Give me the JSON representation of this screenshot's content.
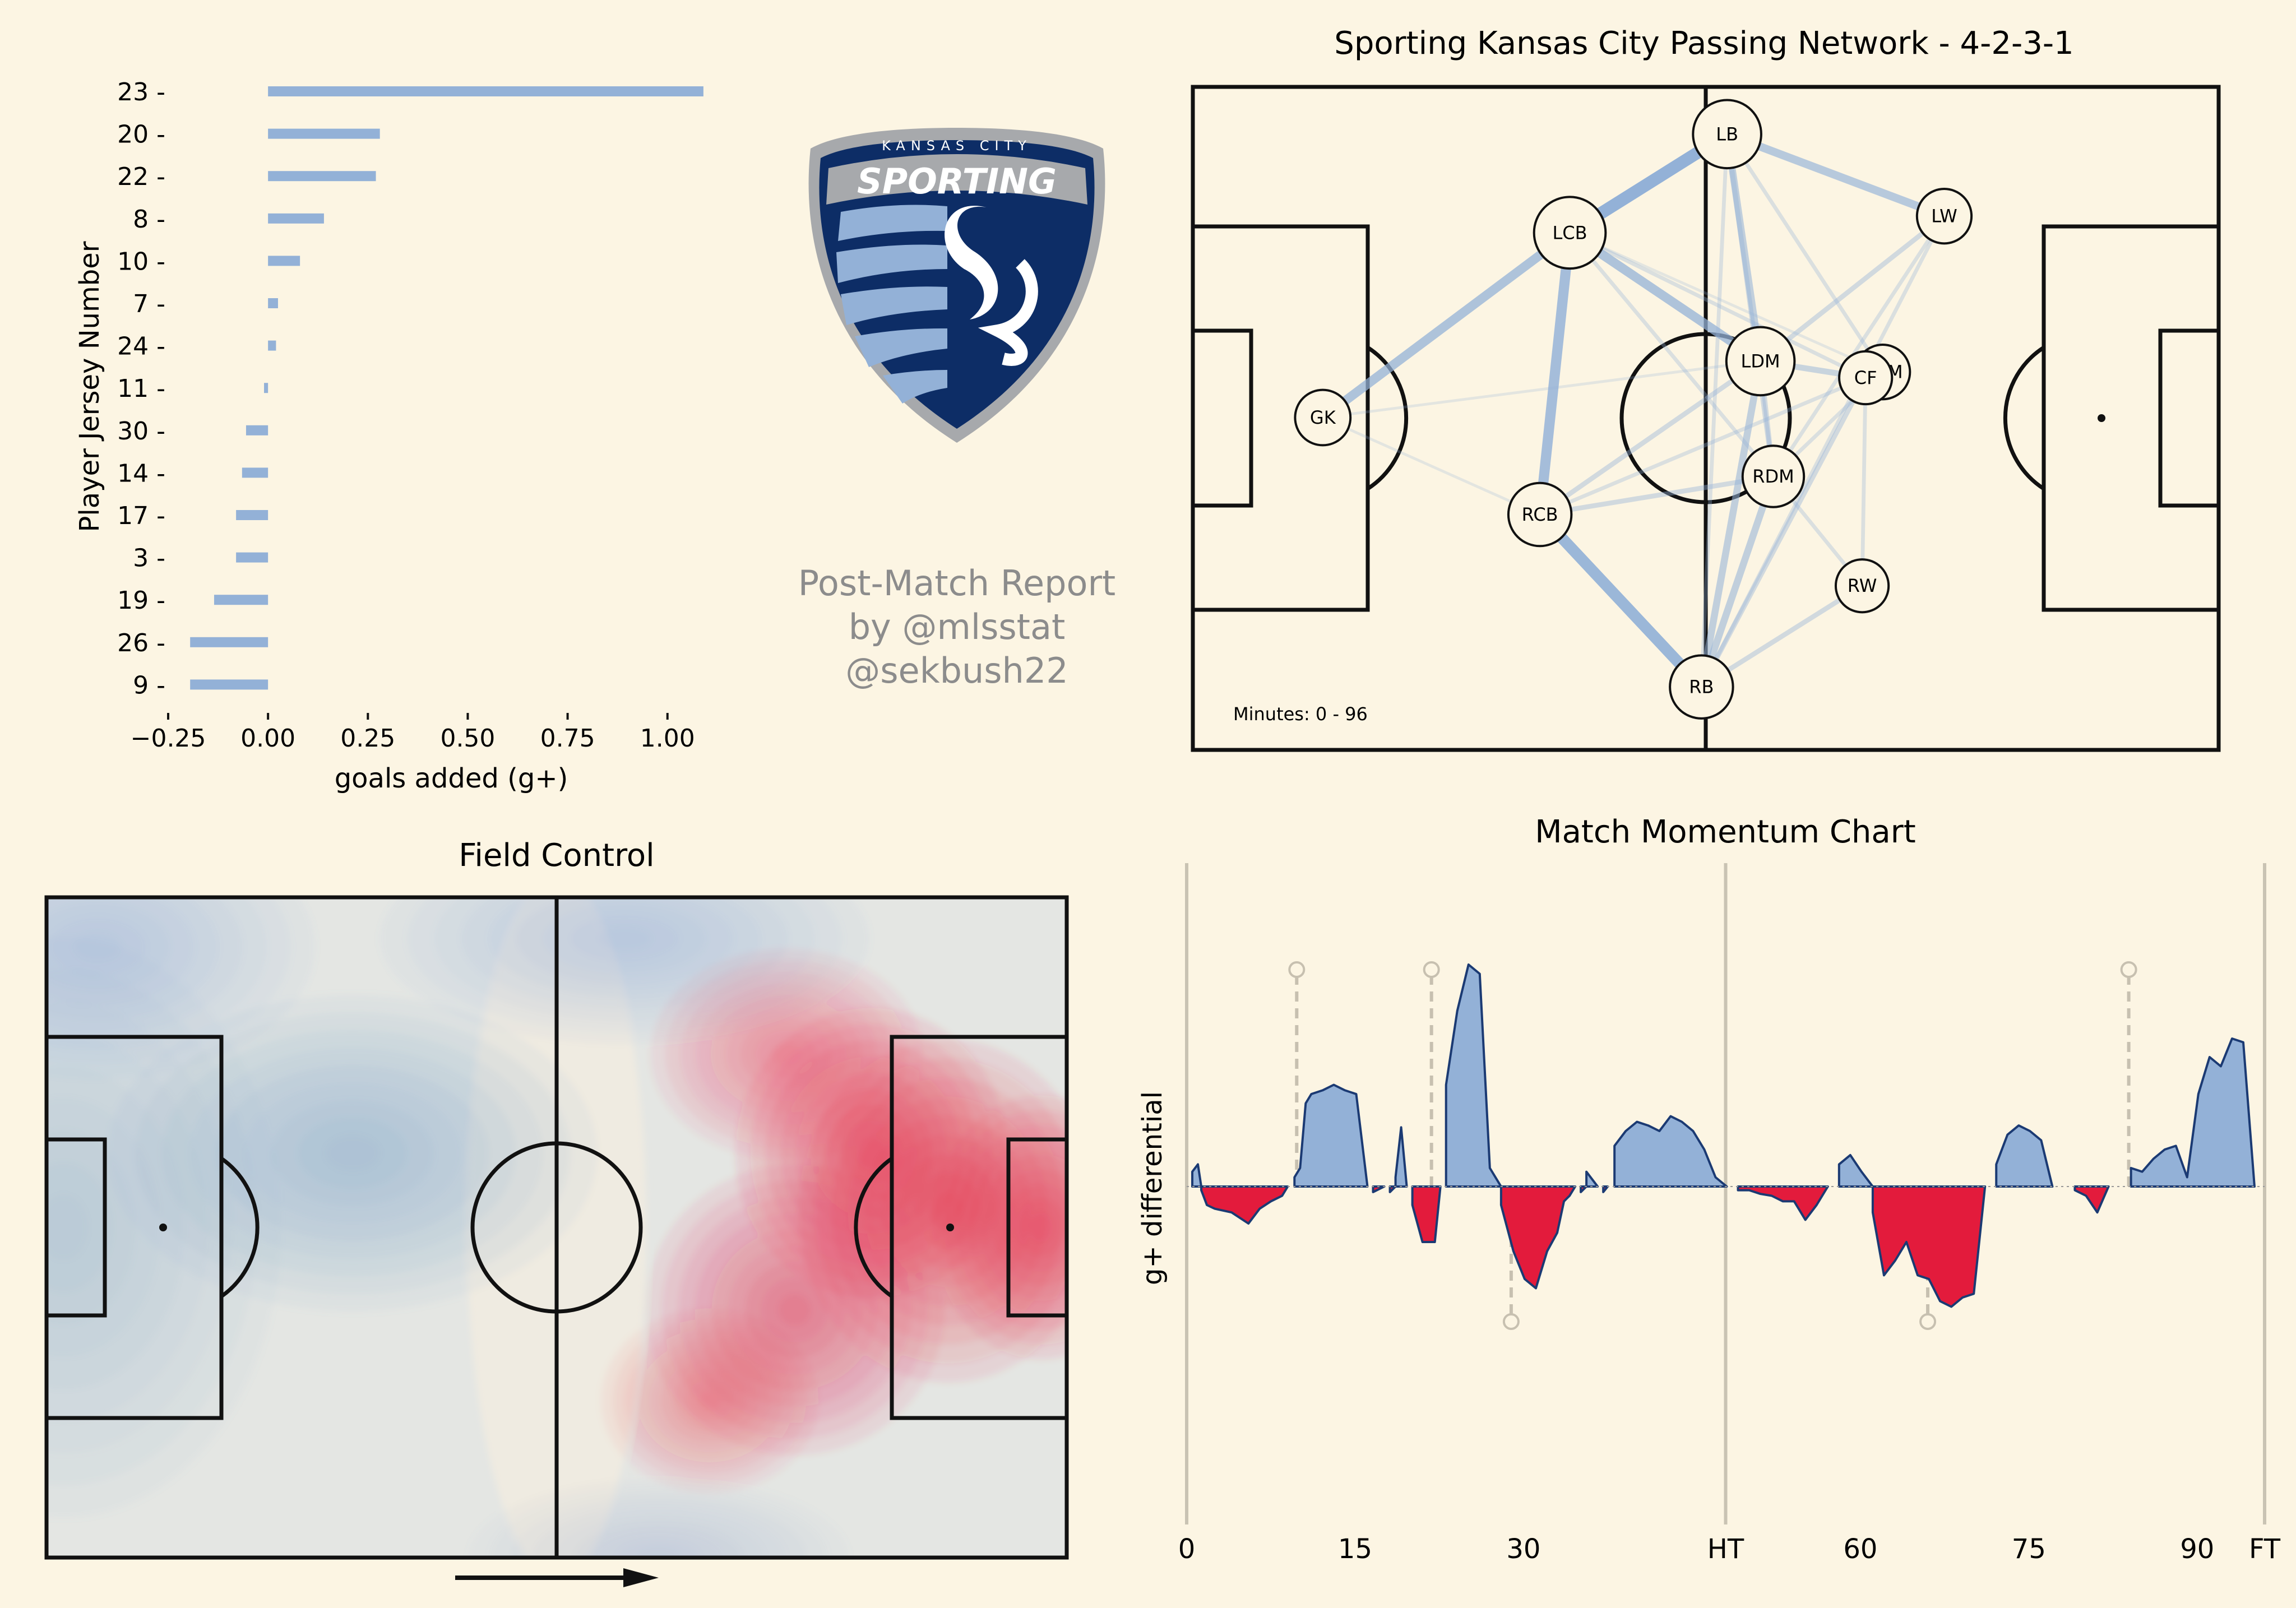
{
  "report": {
    "credit_lines": [
      "Post-Match Report",
      "by @mlsstat",
      "@sekbush22"
    ],
    "logo": {
      "arc_text": "KANSAS CITY",
      "wordmark": "SPORTING",
      "icon": "sporting-kc-crest-icon",
      "colors": {
        "navy": "#0d2d66",
        "light_blue": "#93b1d7",
        "silver": "#a7a9ac"
      }
    }
  },
  "colors": {
    "background": "#fcf5e3",
    "team_blue": "#93b1d7",
    "opponent_red": "#e31b3c",
    "outline_navy": "#1b3a73"
  },
  "chart_data": [
    {
      "id": "goals-added-bar",
      "type": "bar",
      "orientation": "horizontal",
      "title": "",
      "xlabel": "goals added (g+)",
      "ylabel": "Player Jersey Number",
      "xlim": [
        -0.25,
        1.1
      ],
      "xticks": [
        -0.25,
        0.0,
        0.25,
        0.5,
        0.75,
        1.0
      ],
      "xtick_labels": [
        "−0.25",
        "0.00",
        "0.25",
        "0.50",
        "0.75",
        "1.00"
      ],
      "categories": [
        "23",
        "20",
        "22",
        "8",
        "10",
        "7",
        "24",
        "11",
        "30",
        "14",
        "17",
        "3",
        "19",
        "26",
        "9"
      ],
      "category_labels": [
        "23 -",
        "20 -",
        "22 -",
        "8 -",
        "10 -",
        "7 -",
        "24 -",
        "11 -",
        "30 -",
        "14 -",
        "17 -",
        "3 -",
        "19 -",
        "26 -",
        "9 -"
      ],
      "values": [
        1.09,
        0.28,
        0.27,
        0.14,
        0.08,
        0.025,
        0.02,
        -0.01,
        -0.055,
        -0.065,
        -0.08,
        -0.08,
        -0.135,
        -0.195,
        -0.195
      ]
    },
    {
      "id": "passing-network",
      "type": "network",
      "title": "Sporting Kansas City Passing Network - 4-2-3-1",
      "annotation": "Minutes: 0 - 96",
      "pitch_units": {
        "length": 120,
        "width": 80
      },
      "nodes": [
        {
          "label": "GK",
          "x": 15.2,
          "y": 39.9,
          "size": 6.5
        },
        {
          "label": "LCB",
          "x": 44.1,
          "y": 17.6,
          "size": 8.4
        },
        {
          "label": "RCB",
          "x": 40.6,
          "y": 51.6,
          "size": 7.4
        },
        {
          "label": "LB",
          "x": 62.5,
          "y": 5.7,
          "size": 8.0
        },
        {
          "label": "RB",
          "x": 59.5,
          "y": 72.4,
          "size": 7.4
        },
        {
          "label": "LDM",
          "x": 66.4,
          "y": 33.1,
          "size": 8.0
        },
        {
          "label": "RDM",
          "x": 67.9,
          "y": 47.0,
          "size": 7.2
        },
        {
          "label": "LW",
          "x": 87.9,
          "y": 15.6,
          "size": 6.4
        },
        {
          "label": "CAM",
          "x": 80.7,
          "y": 34.4,
          "size": 6.4
        },
        {
          "label": "CF",
          "x": 78.7,
          "y": 35.1,
          "size": 6.2
        },
        {
          "label": "RW",
          "x": 78.3,
          "y": 60.2,
          "size": 6.2
        }
      ],
      "edges": [
        {
          "source": "GK",
          "target": "LCB",
          "weight": 7
        },
        {
          "source": "LCB",
          "target": "LB",
          "weight": 10
        },
        {
          "source": "LCB",
          "target": "RCB",
          "weight": 8
        },
        {
          "source": "RCB",
          "target": "RB",
          "weight": 9
        },
        {
          "source": "LCB",
          "target": "LDM",
          "weight": 7
        },
        {
          "source": "LB",
          "target": "LW",
          "weight": 6
        },
        {
          "source": "LB",
          "target": "LDM",
          "weight": 5
        },
        {
          "source": "RB",
          "target": "RDM",
          "weight": 5
        },
        {
          "source": "RB",
          "target": "LDM",
          "weight": 5
        },
        {
          "source": "RB",
          "target": "CF",
          "weight": 3
        },
        {
          "source": "RB",
          "target": "RW",
          "weight": 3
        },
        {
          "source": "LDM",
          "target": "CF",
          "weight": 4
        },
        {
          "source": "LDM",
          "target": "RDM",
          "weight": 3
        },
        {
          "source": "LB",
          "target": "RDM",
          "weight": 3
        },
        {
          "source": "LW",
          "target": "LDM",
          "weight": 3
        },
        {
          "source": "LW",
          "target": "RDM",
          "weight": 2
        },
        {
          "source": "RCB",
          "target": "LDM",
          "weight": 3
        },
        {
          "source": "RCB",
          "target": "RDM",
          "weight": 3
        },
        {
          "source": "LCB",
          "target": "RDM",
          "weight": 2
        },
        {
          "source": "LCB",
          "target": "CF",
          "weight": 2
        },
        {
          "source": "GK",
          "target": "RCB",
          "weight": 1
        },
        {
          "source": "GK",
          "target": "LDM",
          "weight": 1
        },
        {
          "source": "RDM",
          "target": "RW",
          "weight": 2
        },
        {
          "source": "RDM",
          "target": "CAM",
          "weight": 2
        },
        {
          "source": "CF",
          "target": "RW",
          "weight": 2
        },
        {
          "source": "LB",
          "target": "CAM",
          "weight": 2
        },
        {
          "source": "LB",
          "target": "RB",
          "weight": 2
        },
        {
          "source": "RCB",
          "target": "CF",
          "weight": 2
        },
        {
          "source": "LCB",
          "target": "CAM",
          "weight": 1
        },
        {
          "source": "LW",
          "target": "RB",
          "weight": 2
        }
      ]
    },
    {
      "id": "field-control",
      "type": "heatmap",
      "title": "Field Control",
      "pitch_units": {
        "length": 120,
        "width": 80
      },
      "direction": "left-to-right",
      "hotspots": [
        {
          "team": "blue",
          "x": 36,
          "y": 31,
          "sx": 18,
          "sy": 12,
          "intensity": 0.85
        },
        {
          "team": "blue",
          "x": 2,
          "y": 40,
          "sx": 16,
          "sy": 22,
          "intensity": 0.6
        },
        {
          "team": "blue",
          "x": 6,
          "y": 6,
          "sx": 16,
          "sy": 10,
          "intensity": 0.55
        },
        {
          "team": "blue",
          "x": 68,
          "y": 5,
          "sx": 18,
          "sy": 8,
          "intensity": 0.55
        },
        {
          "team": "blue",
          "x": 72,
          "y": 80,
          "sx": 14,
          "sy": 6,
          "intensity": 0.45
        },
        {
          "team": "red",
          "x": 97,
          "y": 31,
          "sx": 10,
          "sy": 11,
          "intensity": 1.0
        },
        {
          "team": "red",
          "x": 117,
          "y": 40,
          "sx": 8,
          "sy": 10,
          "intensity": 1.0
        },
        {
          "team": "red",
          "x": 106,
          "y": 38,
          "sx": 11,
          "sy": 13,
          "intensity": 0.9
        },
        {
          "team": "red",
          "x": 88,
          "y": 50,
          "sx": 11,
          "sy": 11,
          "intensity": 0.85
        },
        {
          "team": "red",
          "x": 78,
          "y": 61,
          "sx": 8,
          "sy": 7,
          "intensity": 0.6
        },
        {
          "team": "red",
          "x": 87,
          "y": 19,
          "sx": 10,
          "sy": 8,
          "intensity": 0.65
        }
      ]
    },
    {
      "id": "match-momentum",
      "type": "area",
      "title": "Match Momentum Chart",
      "ylabel": "g+ differential",
      "xlim": [
        0,
        96
      ],
      "ylim": [
        -1,
        1
      ],
      "xticks": [
        0,
        15,
        30,
        48,
        60,
        75,
        90,
        96
      ],
      "xtick_labels": [
        "0",
        "15",
        "30",
        "HT",
        "60",
        "75",
        "90",
        "FT"
      ],
      "vlines": [
        0,
        48,
        96
      ],
      "goal_markers": [
        {
          "minute": 9.8,
          "team": "blue"
        },
        {
          "minute": 21.8,
          "team": "blue"
        },
        {
          "minute": 28.9,
          "team": "red"
        },
        {
          "minute": 66.0,
          "team": "red"
        },
        {
          "minute": 83.9,
          "team": "blue"
        }
      ],
      "x": [
        0,
        0.5,
        1,
        1.3,
        1.8,
        2.5,
        4,
        5.5,
        6.5,
        7.5,
        8.5,
        9.0,
        9.6,
        10.1,
        10.6,
        11.1,
        12.1,
        13.1,
        14.1,
        15.1,
        16.1,
        16.6,
        17.6,
        18.1,
        18.6,
        19.1,
        19.6,
        20.1,
        21.0,
        22.1,
        22.6,
        23.1,
        24.1,
        25.1,
        26.1,
        27.0,
        28.0,
        29.1,
        30.1,
        31.1,
        32.1,
        33.0,
        33.6,
        34.1,
        34.6,
        35.1,
        35.6,
        36.6,
        37.1,
        37.5,
        38.1,
        39.1,
        40.1,
        41.1,
        42.1,
        43.1,
        44.1,
        45.1,
        46.1,
        47.1,
        48.1,
        49.1,
        50.1,
        51.1,
        52.1,
        53.1,
        54.1,
        55.1,
        56.1,
        57.1,
        58.1,
        59.1,
        60.1,
        61.1,
        62.1,
        63.1,
        64.1,
        65.1,
        66.1,
        67.1,
        68.1,
        69.1,
        70.1,
        71.1,
        72.1,
        73.1,
        74.1,
        75.1,
        76.1,
        77.1,
        78.1,
        79.1,
        80.1,
        81.1,
        82.1,
        83.1,
        84.1,
        85.1,
        86.1,
        87.1,
        88.1,
        89.1,
        90.1,
        91.1,
        92.1,
        93.1,
        94.1,
        95.1,
        96
      ],
      "values": [
        0.0,
        0.08,
        0.12,
        -0.02,
        -0.1,
        -0.12,
        -0.14,
        -0.2,
        -0.12,
        -0.08,
        -0.05,
        0.0,
        0.05,
        0.1,
        0.45,
        0.5,
        0.52,
        0.55,
        0.52,
        0.5,
        0.0,
        -0.03,
        0.0,
        -0.03,
        0.05,
        0.32,
        0.0,
        -0.1,
        -0.3,
        -0.3,
        0.0,
        0.55,
        0.95,
        1.2,
        1.15,
        0.1,
        -0.1,
        -0.35,
        -0.5,
        -0.55,
        -0.35,
        -0.25,
        -0.08,
        -0.05,
        0.0,
        -0.03,
        0.08,
        0.0,
        -0.03,
        0.0,
        0.22,
        0.3,
        0.35,
        0.33,
        0.3,
        0.38,
        0.35,
        0.3,
        0.2,
        0.05,
        0.0,
        -0.02,
        -0.02,
        -0.04,
        -0.05,
        -0.08,
        -0.08,
        -0.18,
        -0.1,
        0.0,
        0.12,
        0.17,
        0.08,
        -0.14,
        -0.48,
        -0.4,
        -0.3,
        -0.48,
        -0.5,
        -0.62,
        -0.65,
        -0.6,
        -0.58,
        0.0,
        0.12,
        0.28,
        0.33,
        0.3,
        0.25,
        0.0,
        0.0,
        -0.02,
        -0.05,
        -0.14,
        0.0,
        0.0,
        0.1,
        0.08,
        0.15,
        0.2,
        0.22,
        0.05,
        0.5,
        0.7,
        0.65,
        0.8,
        0.78,
        0.0,
        0.0
      ]
    }
  ]
}
